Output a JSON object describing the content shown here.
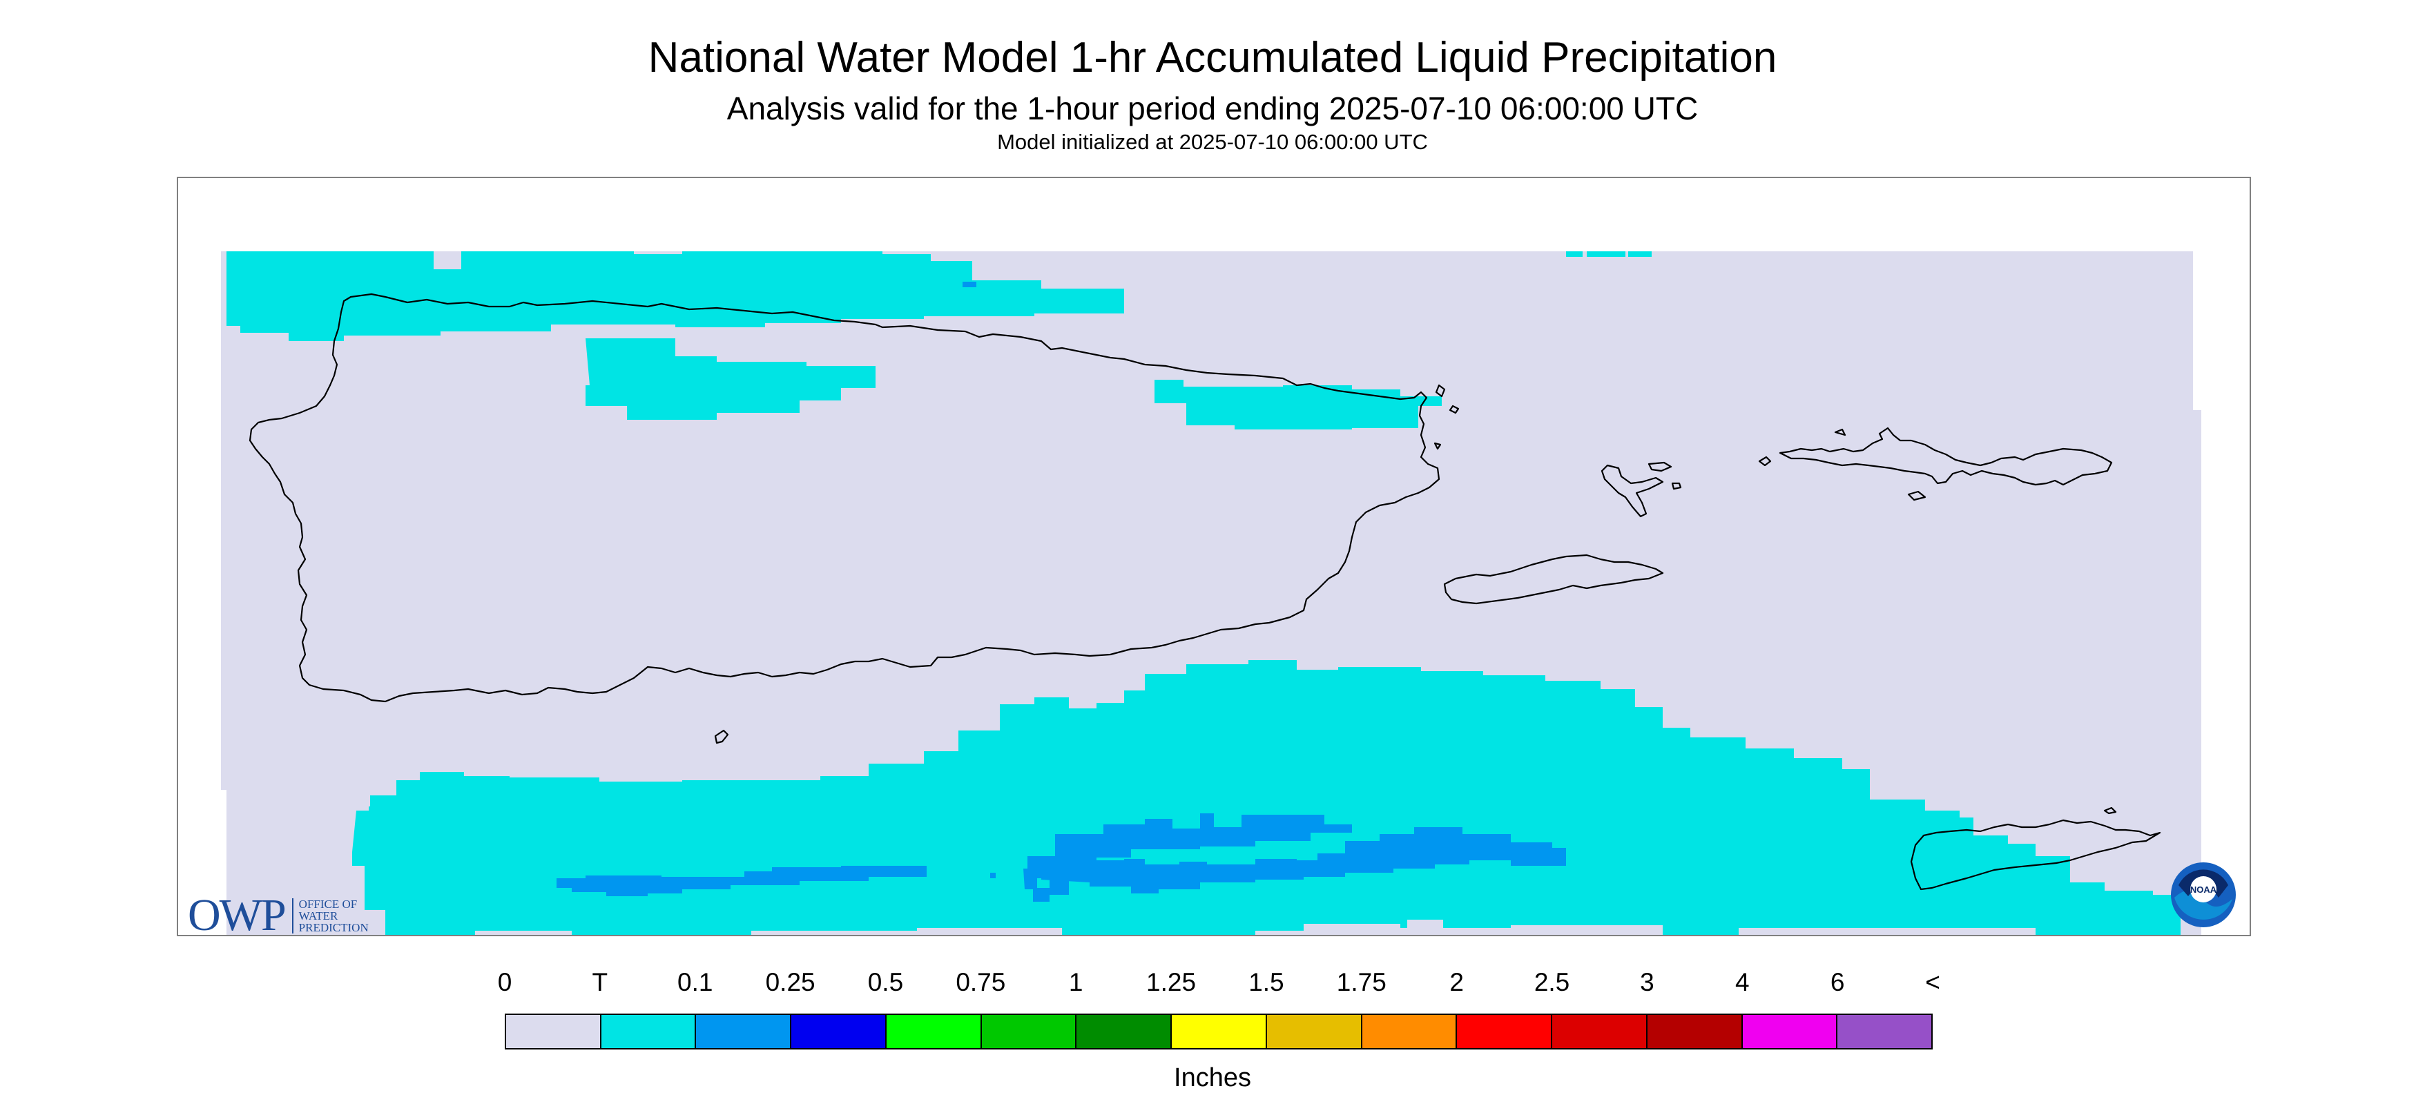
{
  "header": {
    "title": "National Water Model 1-hr Accumulated Liquid Precipitation",
    "subtitle": "Analysis valid for the 1-hour period ending 2025-07-10 06:00:00 UTC",
    "init_line": "Model initialized at 2025-07-10 06:00:00 UTC"
  },
  "map": {
    "region": "Puerto Rico and U.S. Virgin Islands",
    "background_color": "#dcdcee",
    "coastline_color": "#000000",
    "precip_fields": [
      {
        "category": "T",
        "color": "#00e4e4",
        "area": "north coast band and small patch near northeast"
      },
      {
        "category": "T",
        "color": "#00e4e4",
        "area": "broad band south of Puerto Rico extending toward St. Croix"
      },
      {
        "category": "0.1",
        "color": "#0096f0",
        "area": "embedded cores south of Puerto Rico"
      }
    ]
  },
  "logos": {
    "owp": {
      "letters": "OWP",
      "line1": "OFFICE OF",
      "line2": "WATER",
      "line3": "PREDICTION"
    },
    "noaa": {
      "text": "NOAA"
    }
  },
  "legend": {
    "labels": [
      "0",
      "T",
      "0.1",
      "0.25",
      "0.5",
      "0.75",
      "1",
      "1.25",
      "1.5",
      "1.75",
      "2",
      "2.5",
      "3",
      "4",
      "6",
      "<"
    ],
    "colors": [
      "#dcdcee",
      "#00e4e4",
      "#0096f0",
      "#0000f0",
      "#00ff00",
      "#00c800",
      "#008c00",
      "#ffff00",
      "#e6be00",
      "#ff8c00",
      "#ff0000",
      "#dc0000",
      "#b40000",
      "#f000f0",
      "#9650c8"
    ],
    "units": "Inches"
  }
}
